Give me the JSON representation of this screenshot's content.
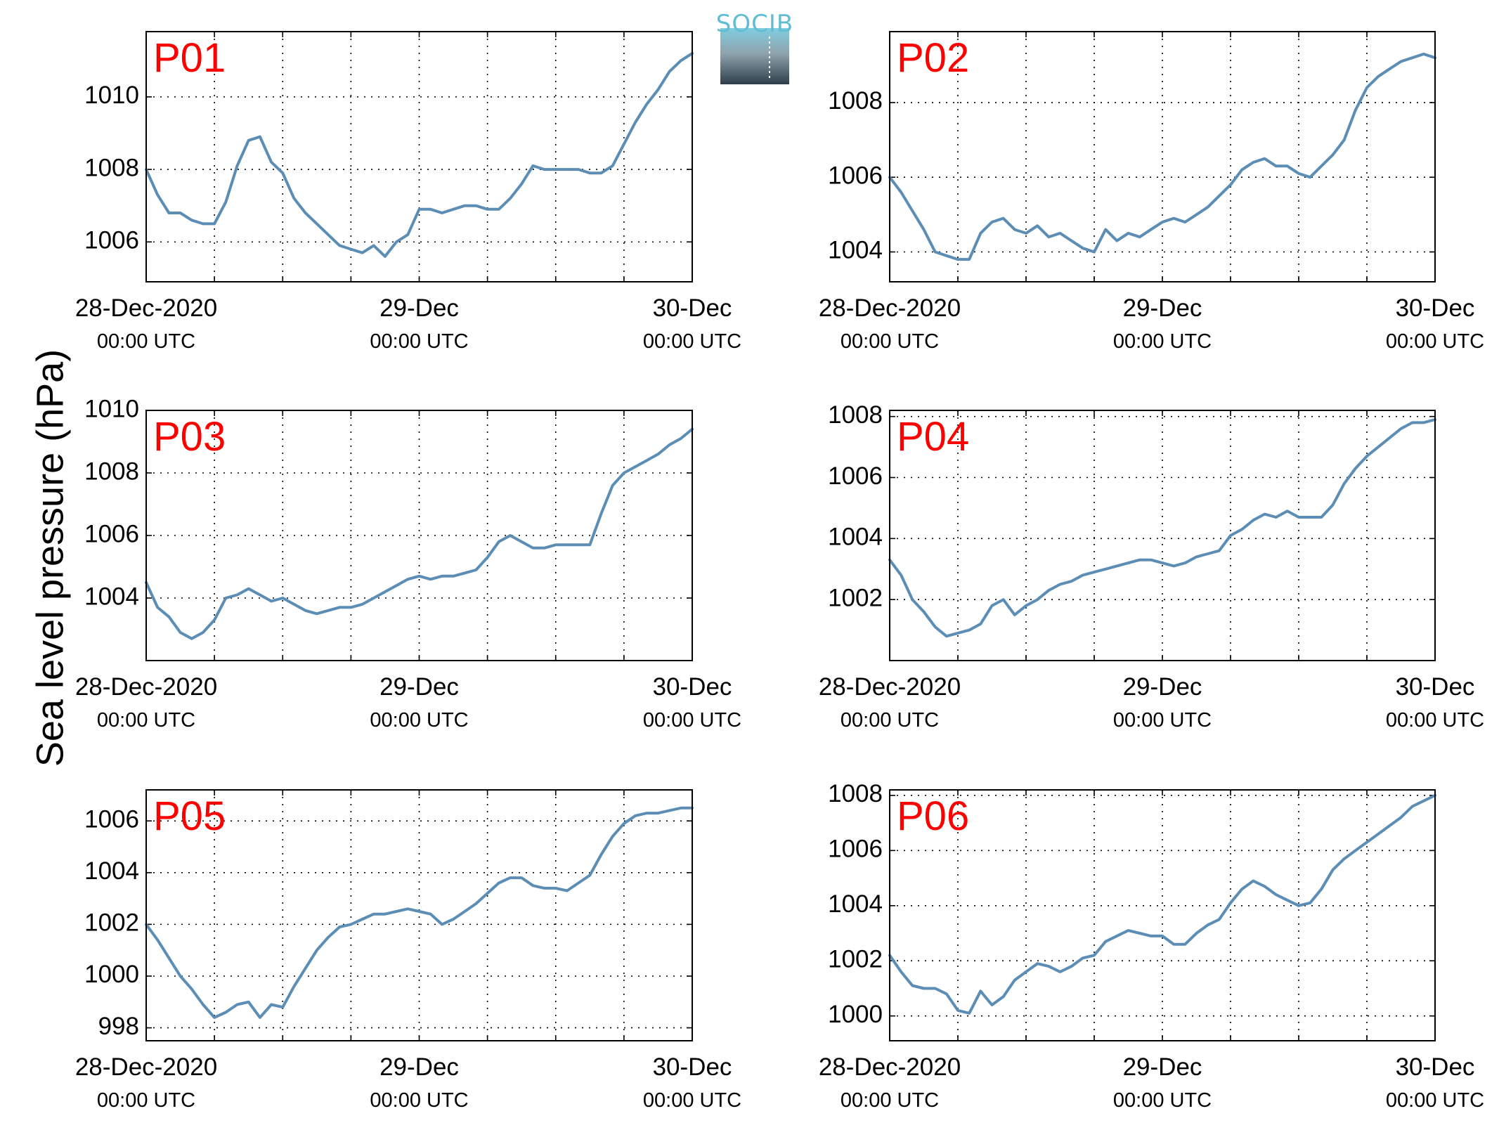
{
  "ylabel": "Sea level pressure (hPa)",
  "logo_text": "SOCIB",
  "colors": {
    "line": "#5b8db5",
    "label": "#ff0000",
    "logo_top": "#7fcde0",
    "logo_bottom": "#2e3f4a"
  },
  "chart_data": [
    {
      "type": "line",
      "label": "P01",
      "x_ticks": [
        {
          "main": "28-Dec-2020",
          "sub": "00:00 UTC"
        },
        {
          "main": "29-Dec",
          "sub": "00:00 UTC"
        },
        {
          "main": "30-Dec",
          "sub": "00:00 UTC"
        }
      ],
      "xlim": [
        0,
        48
      ],
      "ylim": [
        1004.9,
        1011.8
      ],
      "y_ticks": [
        1006,
        1008,
        1010
      ],
      "grid": true,
      "x": [
        0,
        1,
        2,
        3,
        4,
        5,
        6,
        7,
        8,
        9,
        10,
        11,
        12,
        13,
        14,
        15,
        16,
        17,
        18,
        19,
        20,
        21,
        22,
        23,
        24,
        25,
        26,
        27,
        28,
        29,
        30,
        31,
        32,
        33,
        34,
        35,
        36,
        37,
        38,
        39,
        40,
        41,
        42,
        43,
        44,
        45,
        46,
        47,
        48
      ],
      "y": [
        1008.0,
        1007.3,
        1006.8,
        1006.8,
        1006.6,
        1006.5,
        1006.5,
        1007.1,
        1008.1,
        1008.8,
        1008.9,
        1008.2,
        1007.9,
        1007.2,
        1006.8,
        1006.5,
        1006.2,
        1005.9,
        1005.8,
        1005.7,
        1005.9,
        1005.6,
        1006.0,
        1006.2,
        1006.9,
        1006.9,
        1006.8,
        1006.9,
        1007.0,
        1007.0,
        1006.9,
        1006.9,
        1007.2,
        1007.6,
        1008.1,
        1008.0,
        1008.0,
        1008.0,
        1008.0,
        1007.9,
        1007.9,
        1008.1,
        1008.7,
        1009.3,
        1009.8,
        1010.2,
        1010.7,
        1011.0,
        1011.2
      ]
    },
    {
      "type": "line",
      "label": "P02",
      "x_ticks": [
        {
          "main": "28-Dec-2020",
          "sub": "00:00 UTC"
        },
        {
          "main": "29-Dec",
          "sub": "00:00 UTC"
        },
        {
          "main": "30-Dec",
          "sub": "00:00 UTC"
        }
      ],
      "xlim": [
        0,
        48
      ],
      "ylim": [
        1003.2,
        1009.9
      ],
      "y_ticks": [
        1004,
        1006,
        1008
      ],
      "grid": true,
      "x": [
        0,
        1,
        2,
        3,
        4,
        5,
        6,
        7,
        8,
        9,
        10,
        11,
        12,
        13,
        14,
        15,
        16,
        17,
        18,
        19,
        20,
        21,
        22,
        23,
        24,
        25,
        26,
        27,
        28,
        29,
        30,
        31,
        32,
        33,
        34,
        35,
        36,
        37,
        38,
        39,
        40,
        41,
        42,
        43,
        44,
        45,
        46,
        47,
        48
      ],
      "y": [
        1006.0,
        1005.6,
        1005.1,
        1004.6,
        1004.0,
        1003.9,
        1003.8,
        1003.8,
        1004.5,
        1004.8,
        1004.9,
        1004.6,
        1004.5,
        1004.7,
        1004.4,
        1004.5,
        1004.3,
        1004.1,
        1004.0,
        1004.6,
        1004.3,
        1004.5,
        1004.4,
        1004.6,
        1004.8,
        1004.9,
        1004.8,
        1005.0,
        1005.2,
        1005.5,
        1005.8,
        1006.2,
        1006.4,
        1006.5,
        1006.3,
        1006.3,
        1006.1,
        1006.0,
        1006.3,
        1006.6,
        1007.0,
        1007.8,
        1008.4,
        1008.7,
        1008.9,
        1009.1,
        1009.2,
        1009.3,
        1009.2
      ]
    },
    {
      "type": "line",
      "label": "P03",
      "x_ticks": [
        {
          "main": "28-Dec-2020",
          "sub": "00:00 UTC"
        },
        {
          "main": "29-Dec",
          "sub": "00:00 UTC"
        },
        {
          "main": "30-Dec",
          "sub": "00:00 UTC"
        }
      ],
      "xlim": [
        0,
        48
      ],
      "ylim": [
        1002.0,
        1010.0
      ],
      "y_ticks": [
        1004,
        1006,
        1008,
        1010
      ],
      "grid": true,
      "x": [
        0,
        1,
        2,
        3,
        4,
        5,
        6,
        7,
        8,
        9,
        10,
        11,
        12,
        13,
        14,
        15,
        16,
        17,
        18,
        19,
        20,
        21,
        22,
        23,
        24,
        25,
        26,
        27,
        28,
        29,
        30,
        31,
        32,
        33,
        34,
        35,
        36,
        37,
        38,
        39,
        40,
        41,
        42,
        43,
        44,
        45,
        46,
        47,
        48
      ],
      "y": [
        1004.5,
        1003.7,
        1003.4,
        1002.9,
        1002.7,
        1002.9,
        1003.3,
        1004.0,
        1004.1,
        1004.3,
        1004.1,
        1003.9,
        1004.0,
        1003.8,
        1003.6,
        1003.5,
        1003.6,
        1003.7,
        1003.7,
        1003.8,
        1004.0,
        1004.2,
        1004.4,
        1004.6,
        1004.7,
        1004.6,
        1004.7,
        1004.7,
        1004.8,
        1004.9,
        1005.3,
        1005.8,
        1006.0,
        1005.8,
        1005.6,
        1005.6,
        1005.7,
        1005.7,
        1005.7,
        1005.7,
        1006.7,
        1007.6,
        1008.0,
        1008.2,
        1008.4,
        1008.6,
        1008.9,
        1009.1,
        1009.4
      ]
    },
    {
      "type": "line",
      "label": "P04",
      "x_ticks": [
        {
          "main": "28-Dec-2020",
          "sub": "00:00 UTC"
        },
        {
          "main": "29-Dec",
          "sub": "00:00 UTC"
        },
        {
          "main": "30-Dec",
          "sub": "00:00 UTC"
        }
      ],
      "xlim": [
        0,
        48
      ],
      "ylim": [
        1000.0,
        1008.2
      ],
      "y_ticks": [
        1002,
        1004,
        1006,
        1008
      ],
      "grid": true,
      "x": [
        0,
        1,
        2,
        3,
        4,
        5,
        6,
        7,
        8,
        9,
        10,
        11,
        12,
        13,
        14,
        15,
        16,
        17,
        18,
        19,
        20,
        21,
        22,
        23,
        24,
        25,
        26,
        27,
        28,
        29,
        30,
        31,
        32,
        33,
        34,
        35,
        36,
        37,
        38,
        39,
        40,
        41,
        42,
        43,
        44,
        45,
        46,
        47,
        48
      ],
      "y": [
        1003.3,
        1002.8,
        1002.0,
        1001.6,
        1001.1,
        1000.8,
        1000.9,
        1001.0,
        1001.2,
        1001.8,
        1002.0,
        1001.5,
        1001.8,
        1002.0,
        1002.3,
        1002.5,
        1002.6,
        1002.8,
        1002.9,
        1003.0,
        1003.1,
        1003.2,
        1003.3,
        1003.3,
        1003.2,
        1003.1,
        1003.2,
        1003.4,
        1003.5,
        1003.6,
        1004.1,
        1004.3,
        1004.6,
        1004.8,
        1004.7,
        1004.9,
        1004.7,
        1004.7,
        1004.7,
        1005.1,
        1005.8,
        1006.3,
        1006.7,
        1007.0,
        1007.3,
        1007.6,
        1007.8,
        1007.8,
        1007.9
      ]
    },
    {
      "type": "line",
      "label": "P05",
      "x_ticks": [
        {
          "main": "28-Dec-2020",
          "sub": "00:00 UTC"
        },
        {
          "main": "29-Dec",
          "sub": "00:00 UTC"
        },
        {
          "main": "30-Dec",
          "sub": "00:00 UTC"
        }
      ],
      "xlim": [
        0,
        48
      ],
      "ylim": [
        997.5,
        1007.2
      ],
      "y_ticks": [
        998,
        1000,
        1002,
        1004,
        1006
      ],
      "grid": true,
      "x": [
        0,
        1,
        2,
        3,
        4,
        5,
        6,
        7,
        8,
        9,
        10,
        11,
        12,
        13,
        14,
        15,
        16,
        17,
        18,
        19,
        20,
        21,
        22,
        23,
        24,
        25,
        26,
        27,
        28,
        29,
        30,
        31,
        32,
        33,
        34,
        35,
        36,
        37,
        38,
        39,
        40,
        41,
        42,
        43,
        44,
        45,
        46,
        47,
        48
      ],
      "y": [
        1002.0,
        1001.4,
        1000.7,
        1000.0,
        999.5,
        998.9,
        998.4,
        998.6,
        998.9,
        999.0,
        998.4,
        998.9,
        998.8,
        999.6,
        1000.3,
        1001.0,
        1001.5,
        1001.9,
        1002.0,
        1002.2,
        1002.4,
        1002.4,
        1002.5,
        1002.6,
        1002.5,
        1002.4,
        1002.0,
        1002.2,
        1002.5,
        1002.8,
        1003.2,
        1003.6,
        1003.8,
        1003.8,
        1003.5,
        1003.4,
        1003.4,
        1003.3,
        1003.6,
        1003.9,
        1004.7,
        1005.4,
        1005.9,
        1006.2,
        1006.3,
        1006.3,
        1006.4,
        1006.5,
        1006.5
      ]
    },
    {
      "type": "line",
      "label": "P06",
      "x_ticks": [
        {
          "main": "28-Dec-2020",
          "sub": "00:00 UTC"
        },
        {
          "main": "29-Dec",
          "sub": "00:00 UTC"
        },
        {
          "main": "30-Dec",
          "sub": "00:00 UTC"
        }
      ],
      "xlim": [
        0,
        48
      ],
      "ylim": [
        999.1,
        1008.2
      ],
      "y_ticks": [
        1000,
        1002,
        1004,
        1006,
        1008
      ],
      "grid": true,
      "x": [
        0,
        1,
        2,
        3,
        4,
        5,
        6,
        7,
        8,
        9,
        10,
        11,
        12,
        13,
        14,
        15,
        16,
        17,
        18,
        19,
        20,
        21,
        22,
        23,
        24,
        25,
        26,
        27,
        28,
        29,
        30,
        31,
        32,
        33,
        34,
        35,
        36,
        37,
        38,
        39,
        40,
        41,
        42,
        43,
        44,
        45,
        46,
        47,
        48
      ],
      "y": [
        1002.2,
        1001.6,
        1001.1,
        1001.0,
        1001.0,
        1000.8,
        1000.2,
        1000.1,
        1000.9,
        1000.4,
        1000.7,
        1001.3,
        1001.6,
        1001.9,
        1001.8,
        1001.6,
        1001.8,
        1002.1,
        1002.2,
        1002.7,
        1002.9,
        1003.1,
        1003.0,
        1002.9,
        1002.9,
        1002.6,
        1002.6,
        1003.0,
        1003.3,
        1003.5,
        1004.1,
        1004.6,
        1004.9,
        1004.7,
        1004.4,
        1004.2,
        1004.0,
        1004.1,
        1004.6,
        1005.3,
        1005.7,
        1006.0,
        1006.3,
        1006.6,
        1006.9,
        1007.2,
        1007.6,
        1007.8,
        1008.0
      ]
    }
  ]
}
